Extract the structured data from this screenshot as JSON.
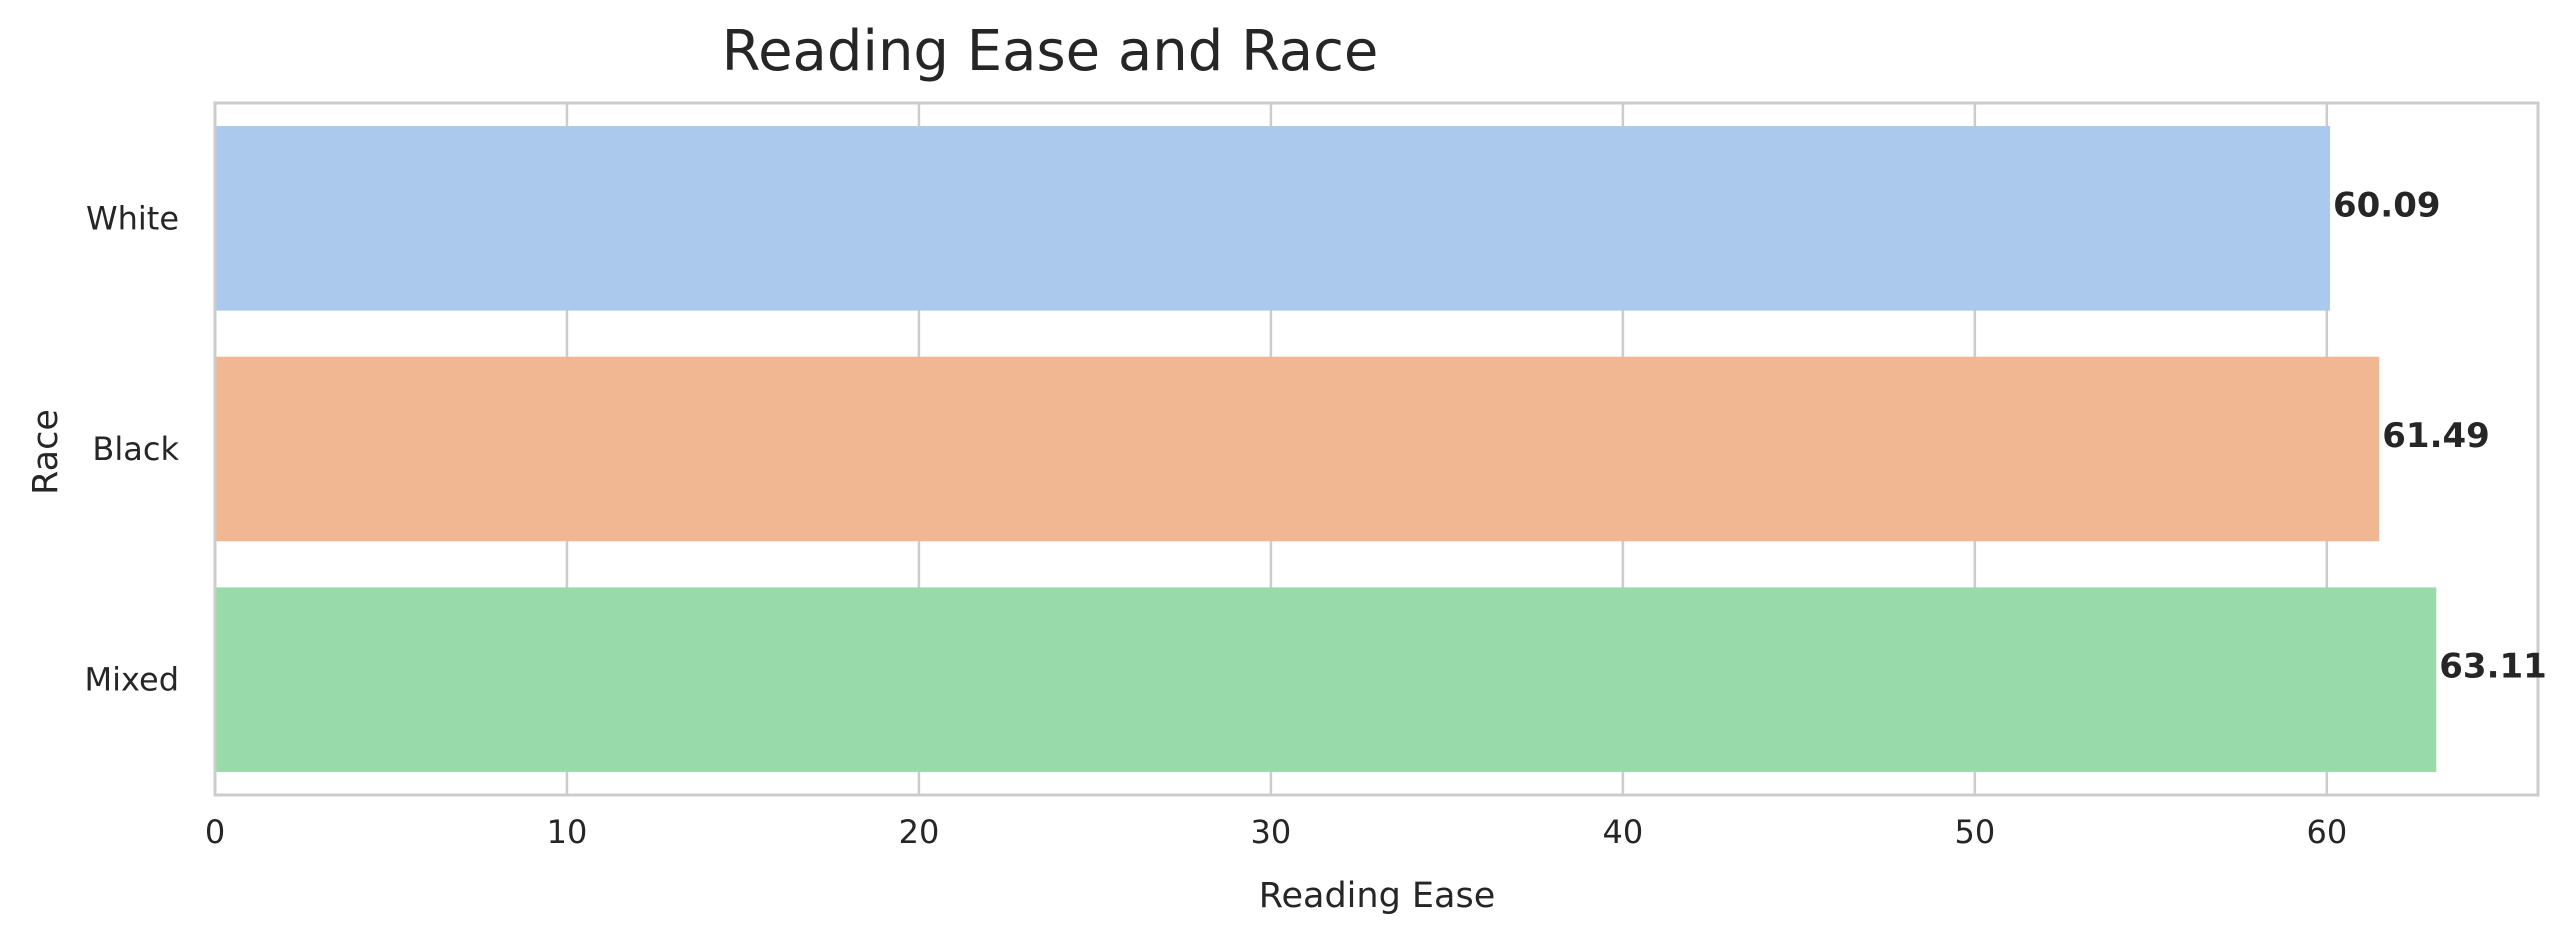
{
  "chart_data": {
    "type": "bar",
    "orientation": "horizontal",
    "title": "Reading Ease and Race",
    "xlabel": "Reading Ease",
    "ylabel": "Race",
    "categories": [
      "White",
      "Black",
      "Mixed"
    ],
    "values": [
      60.09,
      61.49,
      63.11
    ],
    "data_labels": [
      "60.09",
      "61.49",
      "63.11"
    ],
    "colors": [
      "#abc9ec",
      "#f0b792",
      "#99daa9"
    ],
    "xlim": [
      0,
      66
    ],
    "xticks": [
      0,
      10,
      20,
      30,
      40,
      50,
      60
    ],
    "xtick_labels": [
      "0",
      "10",
      "20",
      "30",
      "40",
      "50",
      "60"
    ],
    "grid": "vertical",
    "grid_color": "#cccccc",
    "axes_edge_color": "#cccccc",
    "text_color": "#262626"
  }
}
